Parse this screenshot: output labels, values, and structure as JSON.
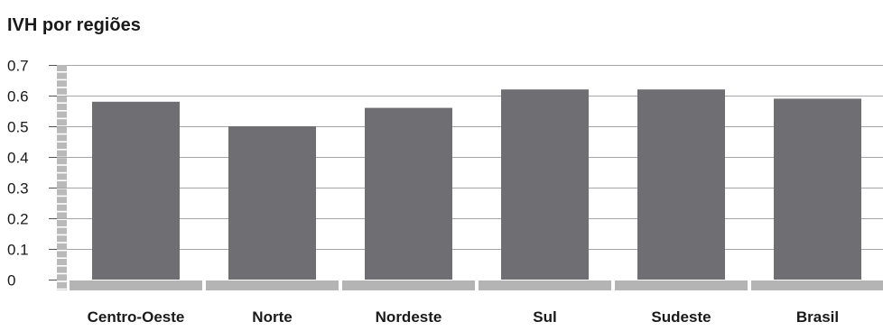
{
  "chart_data": {
    "type": "bar",
    "title": "IVH por regiões",
    "xlabel": "",
    "ylabel": "",
    "categories": [
      "Centro-Oeste",
      "Norte",
      "Nordeste",
      "Sul",
      "Sudeste",
      "Brasil"
    ],
    "values": [
      0.58,
      0.5,
      0.56,
      0.62,
      0.62,
      0.59
    ],
    "ylim": [
      0,
      0.7
    ],
    "yticks": [
      "0",
      "0.1",
      "0.2",
      "0.3",
      "0.4",
      "0.5",
      "0.6",
      "0.7"
    ],
    "grid": true,
    "legend": "none",
    "colors": {
      "bar": "#6e6e73",
      "gridline": "#a6a6a6",
      "base": "#b4b4b4",
      "axis": "#b9b9b9",
      "text": "#1a1a1a"
    }
  }
}
